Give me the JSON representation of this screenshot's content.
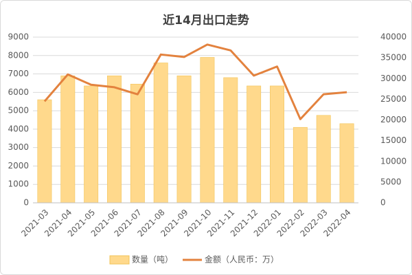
{
  "chart_data": {
    "type": "bar-line",
    "title": "近14月出口走势",
    "categories": [
      "2021-03",
      "2021-04",
      "2021-05",
      "2021-06",
      "2021-07",
      "2021-08",
      "2021-09",
      "2021-10",
      "2021-11",
      "2021-12",
      "2022-01",
      "2022-02",
      "2022-03",
      "2022-04"
    ],
    "series": [
      {
        "name": "数量（吨）",
        "type": "bar",
        "color": "#ffd98c",
        "values": [
          5600,
          6900,
          6350,
          6900,
          6450,
          7600,
          6900,
          7900,
          6800,
          6350,
          6350,
          4100,
          4750,
          4300
        ]
      },
      {
        "name": "金额（人民币：万）",
        "type": "line",
        "axis": "y2",
        "color": "#e3823e",
        "values": [
          24500,
          31000,
          28500,
          27900,
          26200,
          35800,
          35200,
          38200,
          36800,
          30700,
          32900,
          20200,
          26200,
          26700
        ]
      }
    ],
    "ylim": [
      0,
      9000
    ],
    "yticks": [
      0,
      1000,
      2000,
      3000,
      4000,
      5000,
      6000,
      7000,
      8000,
      9000
    ],
    "y2lim": [
      0,
      40000
    ],
    "y2ticks": [
      0,
      5000,
      10000,
      15000,
      20000,
      25000,
      30000,
      35000,
      40000
    ],
    "grid": true,
    "legend": "bottom"
  }
}
